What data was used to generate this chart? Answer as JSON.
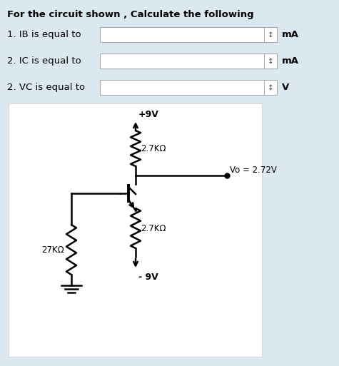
{
  "title": "For the circuit shown , Calculate the following",
  "bg_color": "#dce8f0",
  "panel_bg": "#ffffff",
  "questions": [
    {
      "label": "1. IB is equal to",
      "unit": "mA"
    },
    {
      "label": "2. IC is equal to",
      "unit": "mA"
    },
    {
      "label": "2. VC is equal to",
      "unit": "V"
    }
  ],
  "circuit": {
    "r1_label": "2.7KΩ",
    "r2_label": "2.7KΩ",
    "rb_label": "27KΩ",
    "vp": "+9V",
    "vn": "- 9V",
    "vo_label": "Vo = 2.72V"
  },
  "fig_w": 4.75,
  "fig_h": 5.13,
  "dpi": 100
}
